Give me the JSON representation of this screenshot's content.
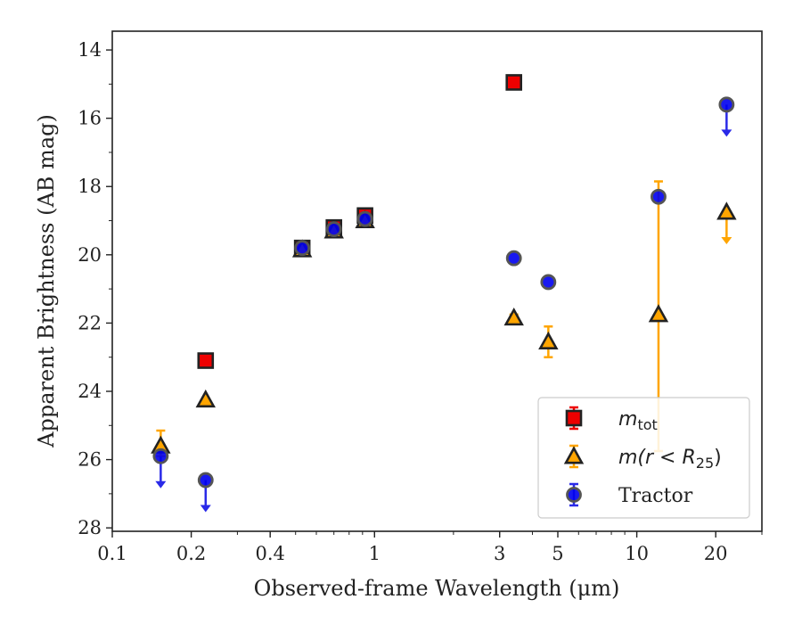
{
  "chart_data": {
    "type": "scatter",
    "title": "",
    "xlabel": "Observed-frame Wavelength (μm)",
    "ylabel": "Apparent Brightness (AB mag)",
    "xscale": "log",
    "xlim": [
      0.1,
      30
    ],
    "ylim": [
      28.1,
      13.45
    ],
    "y_inverted": true,
    "xticks": [
      0.1,
      0.2,
      0.4,
      1,
      3,
      5,
      10,
      20
    ],
    "xtick_labels": [
      "0.1",
      "0.2",
      "0.4",
      "1",
      "3",
      "5",
      "10",
      "20"
    ],
    "yticks": [
      14,
      16,
      18,
      20,
      22,
      24,
      26,
      28
    ],
    "ytick_labels": [
      "14",
      "16",
      "18",
      "20",
      "22",
      "24",
      "26",
      "28"
    ],
    "legend_position": "lower-right",
    "grid": false,
    "series": [
      {
        "key": "mtot",
        "name": "m_tot",
        "legend_main": "m",
        "legend_sub": "tot",
        "marker": "square",
        "color": "#ee0000",
        "edge_color": "#222222",
        "errbar_color": "#ee0000",
        "points": [
          {
            "x": 0.227,
            "y": 23.1
          },
          {
            "x": 0.53,
            "y": 19.8
          },
          {
            "x": 0.7,
            "y": 19.2
          },
          {
            "x": 0.92,
            "y": 18.85
          },
          {
            "x": 3.4,
            "y": 14.95
          }
        ]
      },
      {
        "key": "mr25",
        "name": "m(r < R_25)",
        "legend_main": "m(r < R",
        "legend_sub": "25",
        "legend_tail": ")",
        "marker": "triangle",
        "color": "#ffa500",
        "edge_color": "#222222",
        "errbar_color": "#ffa500",
        "points": [
          {
            "x": 0.153,
            "y": 25.6,
            "yerr_low": 25.15,
            "yerr_high": 25.9
          },
          {
            "x": 0.227,
            "y": 24.25
          },
          {
            "x": 0.53,
            "y": 19.85
          },
          {
            "x": 0.7,
            "y": 19.3
          },
          {
            "x": 0.92,
            "y": 19.0
          },
          {
            "x": 3.4,
            "y": 21.85,
            "yerr_low": 21.75,
            "yerr_high": 22.0
          },
          {
            "x": 4.6,
            "y": 22.55,
            "yerr_low": 22.1,
            "yerr_high": 23.0
          },
          {
            "x": 12.1,
            "y": 21.75,
            "yerr_low": 17.85,
            "yerr_high": 25.75
          },
          {
            "x": 22.0,
            "y": 18.75,
            "upper_limit": true
          }
        ]
      },
      {
        "key": "tractor",
        "name": "Tractor",
        "legend_main": "Tractor",
        "marker": "circle",
        "color": "#0000ee",
        "edge_color": "#555555",
        "errbar_color": "#2a2ae8",
        "points": [
          {
            "x": 0.153,
            "y": 25.9,
            "upper_limit": true
          },
          {
            "x": 0.227,
            "y": 26.6,
            "upper_limit": true
          },
          {
            "x": 0.53,
            "y": 19.8
          },
          {
            "x": 0.7,
            "y": 19.25
          },
          {
            "x": 0.92,
            "y": 18.95
          },
          {
            "x": 3.4,
            "y": 20.1
          },
          {
            "x": 4.6,
            "y": 20.8
          },
          {
            "x": 12.1,
            "y": 18.3
          },
          {
            "x": 22.0,
            "y": 15.6,
            "upper_limit": true
          }
        ]
      }
    ]
  }
}
